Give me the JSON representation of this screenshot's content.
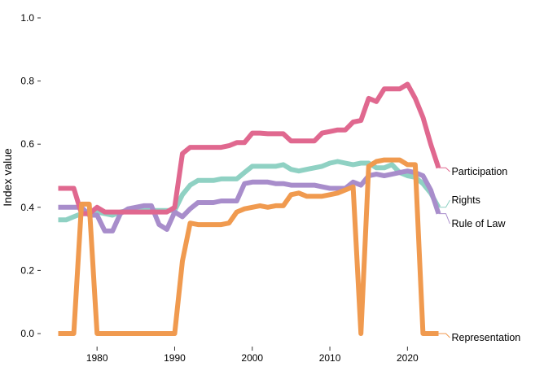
{
  "chart_data": {
    "type": "line",
    "title": "",
    "xlabel": "",
    "ylabel": "Index value",
    "xlim": [
      1974,
      2025
    ],
    "ylim": [
      0,
      1
    ],
    "x_ticks": [
      1980,
      1990,
      2000,
      2010,
      2020
    ],
    "y_ticks": [
      0,
      0.2,
      0.4,
      0.6,
      0.8,
      1.0
    ],
    "y_tick_labels": [
      "0.0",
      "0.2",
      "0.4",
      "0.6",
      "0.8",
      "1.0"
    ],
    "grid": false,
    "legend": "direct labels at line ends (right)",
    "x": [
      1975,
      1976,
      1977,
      1978,
      1979,
      1980,
      1981,
      1982,
      1983,
      1984,
      1985,
      1986,
      1987,
      1988,
      1989,
      1990,
      1991,
      1992,
      1993,
      1994,
      1995,
      1996,
      1997,
      1998,
      1999,
      2000,
      2001,
      2002,
      2003,
      2004,
      2005,
      2006,
      2007,
      2008,
      2009,
      2010,
      2011,
      2012,
      2013,
      2014,
      2015,
      2016,
      2017,
      2018,
      2019,
      2020,
      2021,
      2022,
      2023,
      2024
    ],
    "series": [
      {
        "name": "Participation",
        "color": "#e0688f",
        "values": [
          0.46,
          0.46,
          0.46,
          0.38,
          0.38,
          0.4,
          0.385,
          0.385,
          0.385,
          0.385,
          0.385,
          0.385,
          0.385,
          0.385,
          0.385,
          0.4,
          0.57,
          0.59,
          0.59,
          0.59,
          0.59,
          0.59,
          0.595,
          0.605,
          0.605,
          0.635,
          0.635,
          0.633,
          0.633,
          0.633,
          0.61,
          0.61,
          0.61,
          0.61,
          0.635,
          0.64,
          0.645,
          0.645,
          0.67,
          0.675,
          0.745,
          0.735,
          0.775,
          0.775,
          0.775,
          0.79,
          0.745,
          0.685,
          0.6,
          0.525
        ]
      },
      {
        "name": "Rights",
        "color": "#8fd1c3",
        "values": [
          0.36,
          0.36,
          0.37,
          0.38,
          0.38,
          0.385,
          0.38,
          0.375,
          0.385,
          0.39,
          0.39,
          0.39,
          0.39,
          0.39,
          0.39,
          0.39,
          0.44,
          0.47,
          0.485,
          0.485,
          0.485,
          0.49,
          0.49,
          0.49,
          0.51,
          0.53,
          0.53,
          0.53,
          0.53,
          0.535,
          0.52,
          0.515,
          0.52,
          0.525,
          0.53,
          0.54,
          0.545,
          0.54,
          0.535,
          0.54,
          0.54,
          0.525,
          0.525,
          0.535,
          0.51,
          0.5,
          0.495,
          0.475,
          0.445,
          0.4
        ]
      },
      {
        "name": "Rule of Law",
        "color": "#a88dcb",
        "values": [
          0.4,
          0.4,
          0.4,
          0.4,
          0.375,
          0.375,
          0.325,
          0.325,
          0.38,
          0.395,
          0.4,
          0.405,
          0.405,
          0.345,
          0.33,
          0.385,
          0.37,
          0.395,
          0.415,
          0.415,
          0.415,
          0.42,
          0.42,
          0.42,
          0.475,
          0.48,
          0.48,
          0.48,
          0.475,
          0.475,
          0.47,
          0.47,
          0.47,
          0.47,
          0.465,
          0.46,
          0.46,
          0.46,
          0.48,
          0.47,
          0.5,
          0.505,
          0.5,
          0.505,
          0.51,
          0.515,
          0.51,
          0.5,
          0.455,
          0.38
        ]
      },
      {
        "name": "Representation",
        "color": "#f09a4f",
        "values": [
          0,
          0,
          0,
          0.41,
          0.41,
          0,
          0,
          0,
          0,
          0,
          0,
          0,
          0,
          0,
          0,
          0,
          0.23,
          0.35,
          0.345,
          0.345,
          0.345,
          0.345,
          0.35,
          0.385,
          0.395,
          0.4,
          0.405,
          0.4,
          0.405,
          0.405,
          0.44,
          0.445,
          0.435,
          0.435,
          0.435,
          0.44,
          0.445,
          0.455,
          0.465,
          0,
          0.53,
          0.545,
          0.55,
          0.55,
          0.55,
          0.535,
          0.535,
          0,
          0,
          0
        ]
      }
    ]
  }
}
